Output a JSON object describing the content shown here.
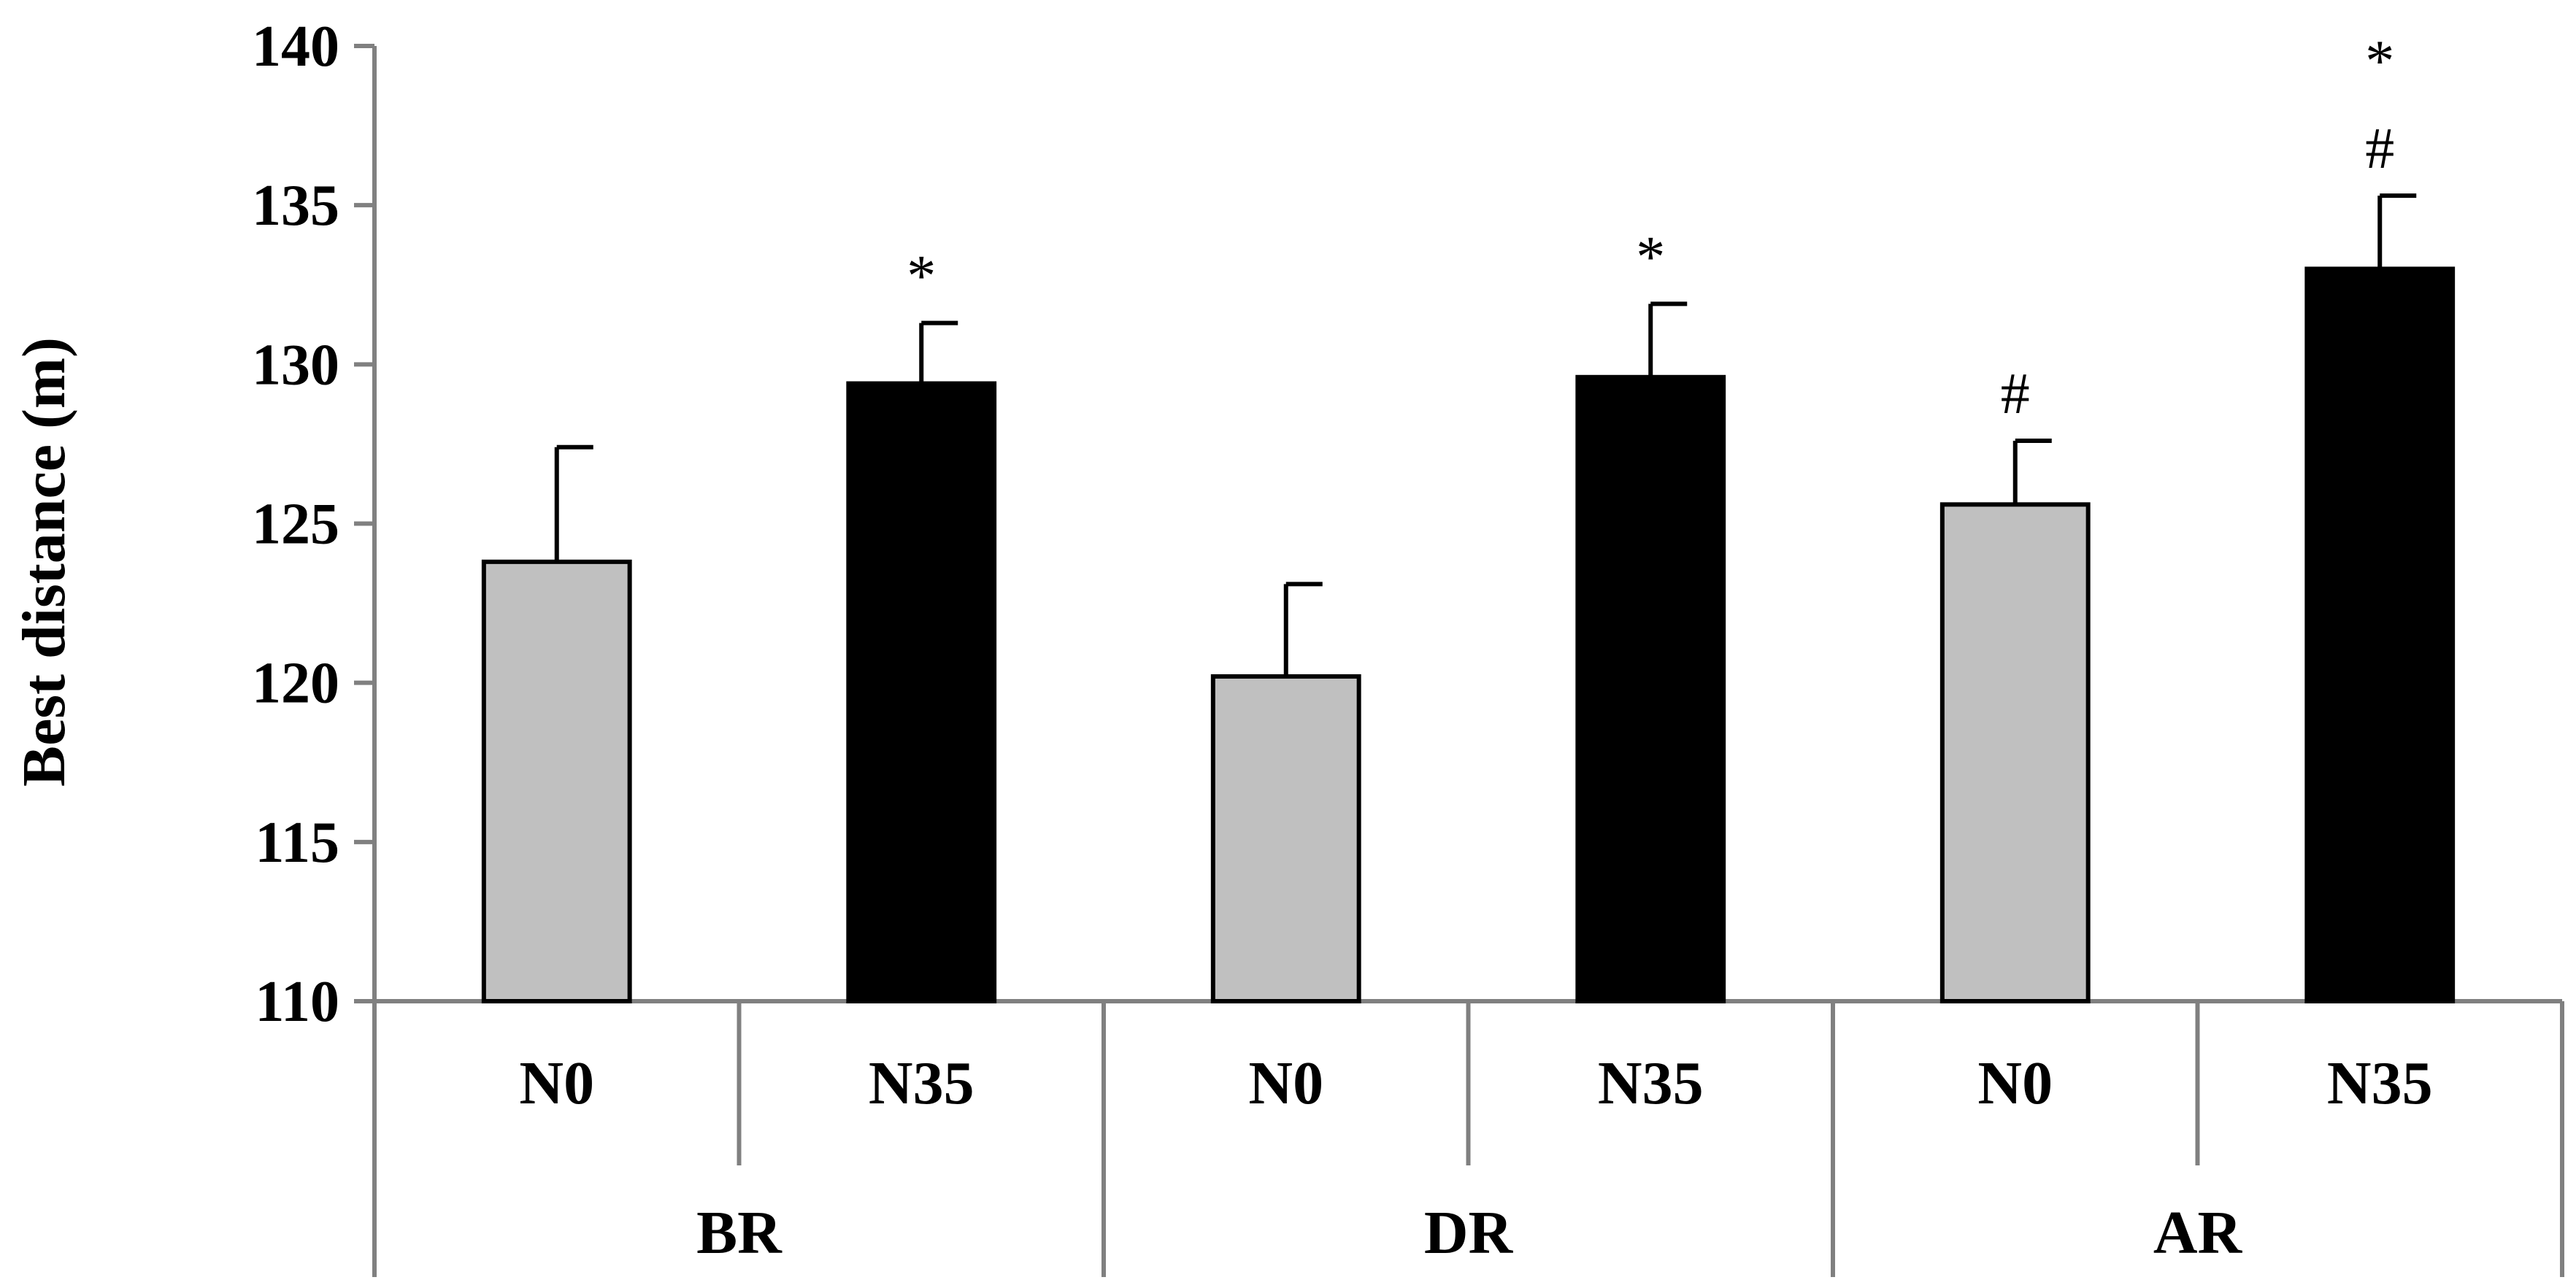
{
  "chart_data": {
    "type": "bar",
    "title": "",
    "ylabel": "Best distance (m)",
    "xlabel": "",
    "ylim": [
      110,
      140
    ],
    "yticks": [
      110,
      115,
      120,
      125,
      130,
      135,
      140
    ],
    "grid": false,
    "legend": "none",
    "groups": [
      {
        "label": "BR",
        "categories": [
          "N0",
          "N35"
        ]
      },
      {
        "label": "DR",
        "categories": [
          "N0",
          "N35"
        ]
      },
      {
        "label": "AR",
        "categories": [
          "N0",
          "N35"
        ]
      }
    ],
    "bars": [
      {
        "group": "BR",
        "category": "N0",
        "value": 123.8,
        "error": 3.6,
        "annotations": []
      },
      {
        "group": "BR",
        "category": "N35",
        "value": 129.4,
        "error": 1.9,
        "annotations": [
          "*"
        ]
      },
      {
        "group": "DR",
        "category": "N0",
        "value": 120.2,
        "error": 2.9,
        "annotations": []
      },
      {
        "group": "DR",
        "category": "N35",
        "value": 129.6,
        "error": 2.3,
        "annotations": [
          "*"
        ]
      },
      {
        "group": "AR",
        "category": "N0",
        "value": 125.6,
        "error": 2.0,
        "annotations": [
          "#"
        ]
      },
      {
        "group": "AR",
        "category": "N35",
        "value": 133.0,
        "error": 2.3,
        "annotations": [
          "#",
          "*"
        ]
      }
    ],
    "colors": {
      "N0": "#c0c0c0",
      "N35": "#000000",
      "axis": "#808080",
      "outline": "#000000"
    }
  }
}
